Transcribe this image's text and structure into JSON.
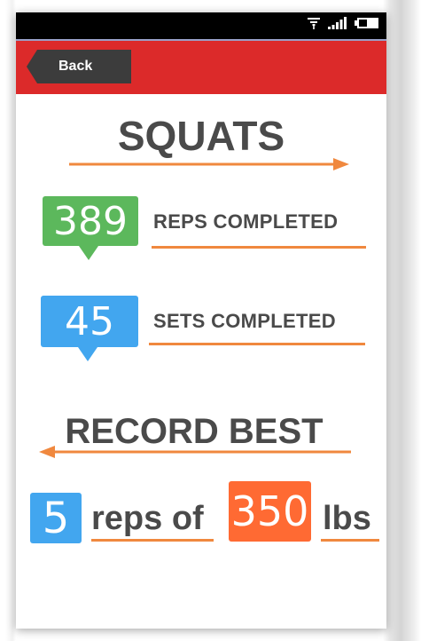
{
  "status_bar": {
    "icons": [
      "wifi-icon",
      "signal-icon",
      "battery-icon"
    ]
  },
  "header": {
    "back_label": "Back"
  },
  "exercise": {
    "title": "SQUATS"
  },
  "stats": {
    "reps_value": "389",
    "reps_label": "REPS COMPLETED",
    "sets_value": "45",
    "sets_label": "SETS COMPLETED"
  },
  "record": {
    "title": "RECORD BEST",
    "reps_value": "5",
    "reps_text": "reps of",
    "weight_value": "350",
    "unit": "lbs"
  },
  "colors": {
    "header_bg": "#dc2a2a",
    "green_badge": "#5cb85c",
    "blue_badge": "#42a6ef",
    "orange_badge": "#ff6a33",
    "underline_orange": "#f0883e",
    "text_gray": "#4a4a4a"
  }
}
